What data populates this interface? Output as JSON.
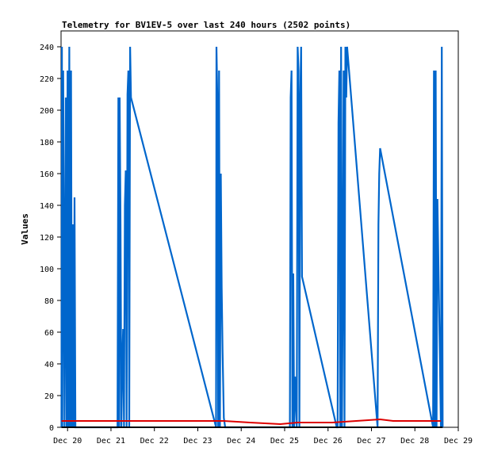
{
  "chart_data": {
    "type": "line",
    "title": "Telemetry for BV1EV-5 over last 240 hours (2502 points)",
    "xlabel": "",
    "ylabel": "Values",
    "ylim": [
      0,
      250
    ],
    "xlim_days": [
      19.85,
      29.0
    ],
    "x_unit": "day of December",
    "y_ticks": [
      0,
      20,
      40,
      60,
      80,
      100,
      120,
      140,
      160,
      180,
      200,
      220,
      240
    ],
    "x_ticks": [
      {
        "label": "Dec 20",
        "day": 20
      },
      {
        "label": "Dec 21",
        "day": 21
      },
      {
        "label": "Dec 22",
        "day": 22
      },
      {
        "label": "Dec 23",
        "day": 23
      },
      {
        "label": "Dec 24",
        "day": 24
      },
      {
        "label": "Dec 25",
        "day": 25
      },
      {
        "label": "Dec 26",
        "day": 26
      },
      {
        "label": "Dec 27",
        "day": 27
      },
      {
        "label": "Dec 28",
        "day": 28
      },
      {
        "label": "Dec 29",
        "day": 29
      }
    ],
    "grid": false,
    "legend": "none",
    "series": [
      {
        "color": "#0066cc",
        "x": [
          19.86,
          19.87,
          19.88,
          19.9,
          19.93,
          19.96,
          19.98,
          20.0,
          20.02,
          20.04,
          20.06,
          20.08,
          20.1,
          20.12,
          20.14,
          20.16,
          20.18,
          20.2,
          20.22,
          20.24,
          20.26,
          20.28,
          20.3,
          21.15,
          21.17,
          21.19,
          21.2,
          21.22,
          21.24,
          21.26,
          21.28,
          21.3,
          21.32,
          21.34,
          21.36,
          21.38,
          21.4,
          21.42,
          21.44,
          21.46,
          23.42,
          23.43,
          23.45,
          23.47,
          23.49,
          23.51,
          23.53,
          23.55,
          23.57,
          23.6,
          23.63,
          25.12,
          25.14,
          25.16,
          25.18,
          25.2,
          25.22,
          25.24,
          25.26,
          25.28,
          25.3,
          25.32,
          25.34,
          25.36,
          25.38,
          25.4,
          26.2,
          26.22,
          26.24,
          26.26,
          26.28,
          26.3,
          26.32,
          26.34,
          26.36,
          26.38,
          26.4,
          26.42,
          26.44,
          27.14,
          27.16,
          27.18,
          27.2,
          28.42,
          28.44,
          28.46,
          28.48,
          28.5,
          28.52,
          28.6,
          28.62,
          28.64
        ],
        "y": [
          0,
          240,
          0,
          225,
          0,
          208,
          0,
          225,
          0,
          240,
          0,
          225,
          0,
          128,
          0,
          145,
          0,
          0,
          0,
          0,
          0,
          0,
          0,
          0,
          208,
          0,
          208,
          128,
          0,
          40,
          62,
          0,
          140,
          162,
          0,
          210,
          225,
          0,
          240,
          208,
          0,
          240,
          208,
          0,
          225,
          0,
          160,
          88,
          48,
          6,
          0,
          0,
          208,
          225,
          0,
          97,
          0,
          32,
          16,
          0,
          240,
          225,
          0,
          208,
          240,
          95,
          0,
          0,
          192,
          225,
          0,
          240,
          0,
          97,
          225,
          0,
          240,
          208,
          240,
          0,
          128,
          160,
          176,
          0,
          225,
          0,
          225,
          0,
          144,
          0,
          240,
          0
        ]
      },
      {
        "color": "#dd0000",
        "x": [
          19.86,
          20.3,
          21.0,
          22.0,
          23.0,
          23.6,
          24.2,
          24.9,
          25.3,
          26.1,
          27.2,
          27.5,
          28.6
        ],
        "y": [
          4,
          4,
          4,
          4,
          4,
          4,
          3,
          2,
          3,
          3,
          5,
          4,
          4
        ]
      },
      {
        "color": "#000000",
        "x": [
          19.86,
          28.64
        ],
        "y": [
          0,
          0
        ]
      }
    ]
  }
}
